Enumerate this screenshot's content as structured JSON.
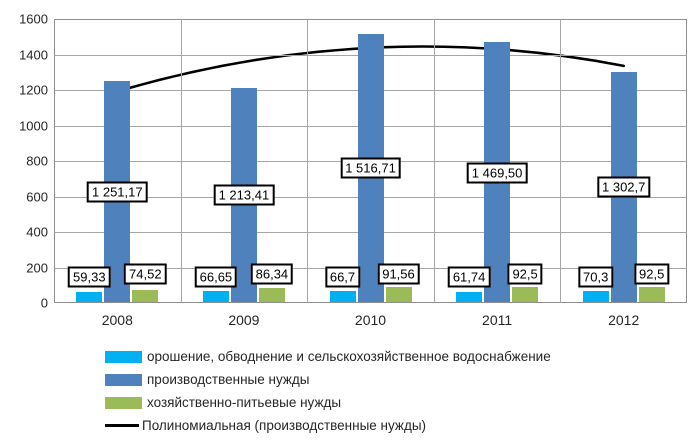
{
  "chart_data": {
    "type": "bar",
    "title": "",
    "xlabel": "",
    "ylabel": "",
    "categories": [
      "2008",
      "2009",
      "2010",
      "2011",
      "2012"
    ],
    "series": [
      {
        "key": "irrigation-water-supply",
        "name": "орошение, обводнение и сельскохозяйственное водоснабжение",
        "color": "#00B0F0",
        "values": [
          59.33,
          66.65,
          66.7,
          61.74,
          70.3
        ],
        "labels": [
          "59,33",
          "66,65",
          "66,7",
          "61,74",
          "70,3"
        ]
      },
      {
        "key": "industrial-needs",
        "name": "производственные нужды",
        "color": "#4F81BD",
        "values": [
          1251.17,
          1213.41,
          1516.71,
          1469.5,
          1302.7
        ],
        "labels": [
          "1 251,17",
          "1 213,41",
          "1 516,71",
          "1 469,50",
          "1 302,7"
        ]
      },
      {
        "key": "household-drinking-needs",
        "name": "хозяйственно-питьевые нужды",
        "color": "#9BBB59",
        "values": [
          74.52,
          86.34,
          91.56,
          92.5,
          92.5
        ],
        "labels": [
          "74,52",
          "86,34",
          "91,56",
          "92,5",
          "92,5"
        ]
      }
    ],
    "trendline": {
      "key": "polynomial-industrial",
      "name": "Полиномиальная (производственные нужды)",
      "color": "#000000",
      "points": [
        1191.9,
        1358.3,
        1437.6,
        1430.1,
        1335.6
      ]
    },
    "ylim": [
      0,
      1600
    ],
    "ytick_step": 200,
    "yticks": [
      "0",
      "200",
      "400",
      "600",
      "800",
      "1000",
      "1200",
      "1400",
      "1600"
    ],
    "grid": true,
    "legend_position": "bottom-left"
  },
  "colors": {
    "background": "#FFFFFF",
    "gridline": "#A6A6A6",
    "plot_frame": "#8E8E8E",
    "tick_text": "#262626",
    "data_label_border": "#000000",
    "data_label_background": "#FFFFFF"
  }
}
